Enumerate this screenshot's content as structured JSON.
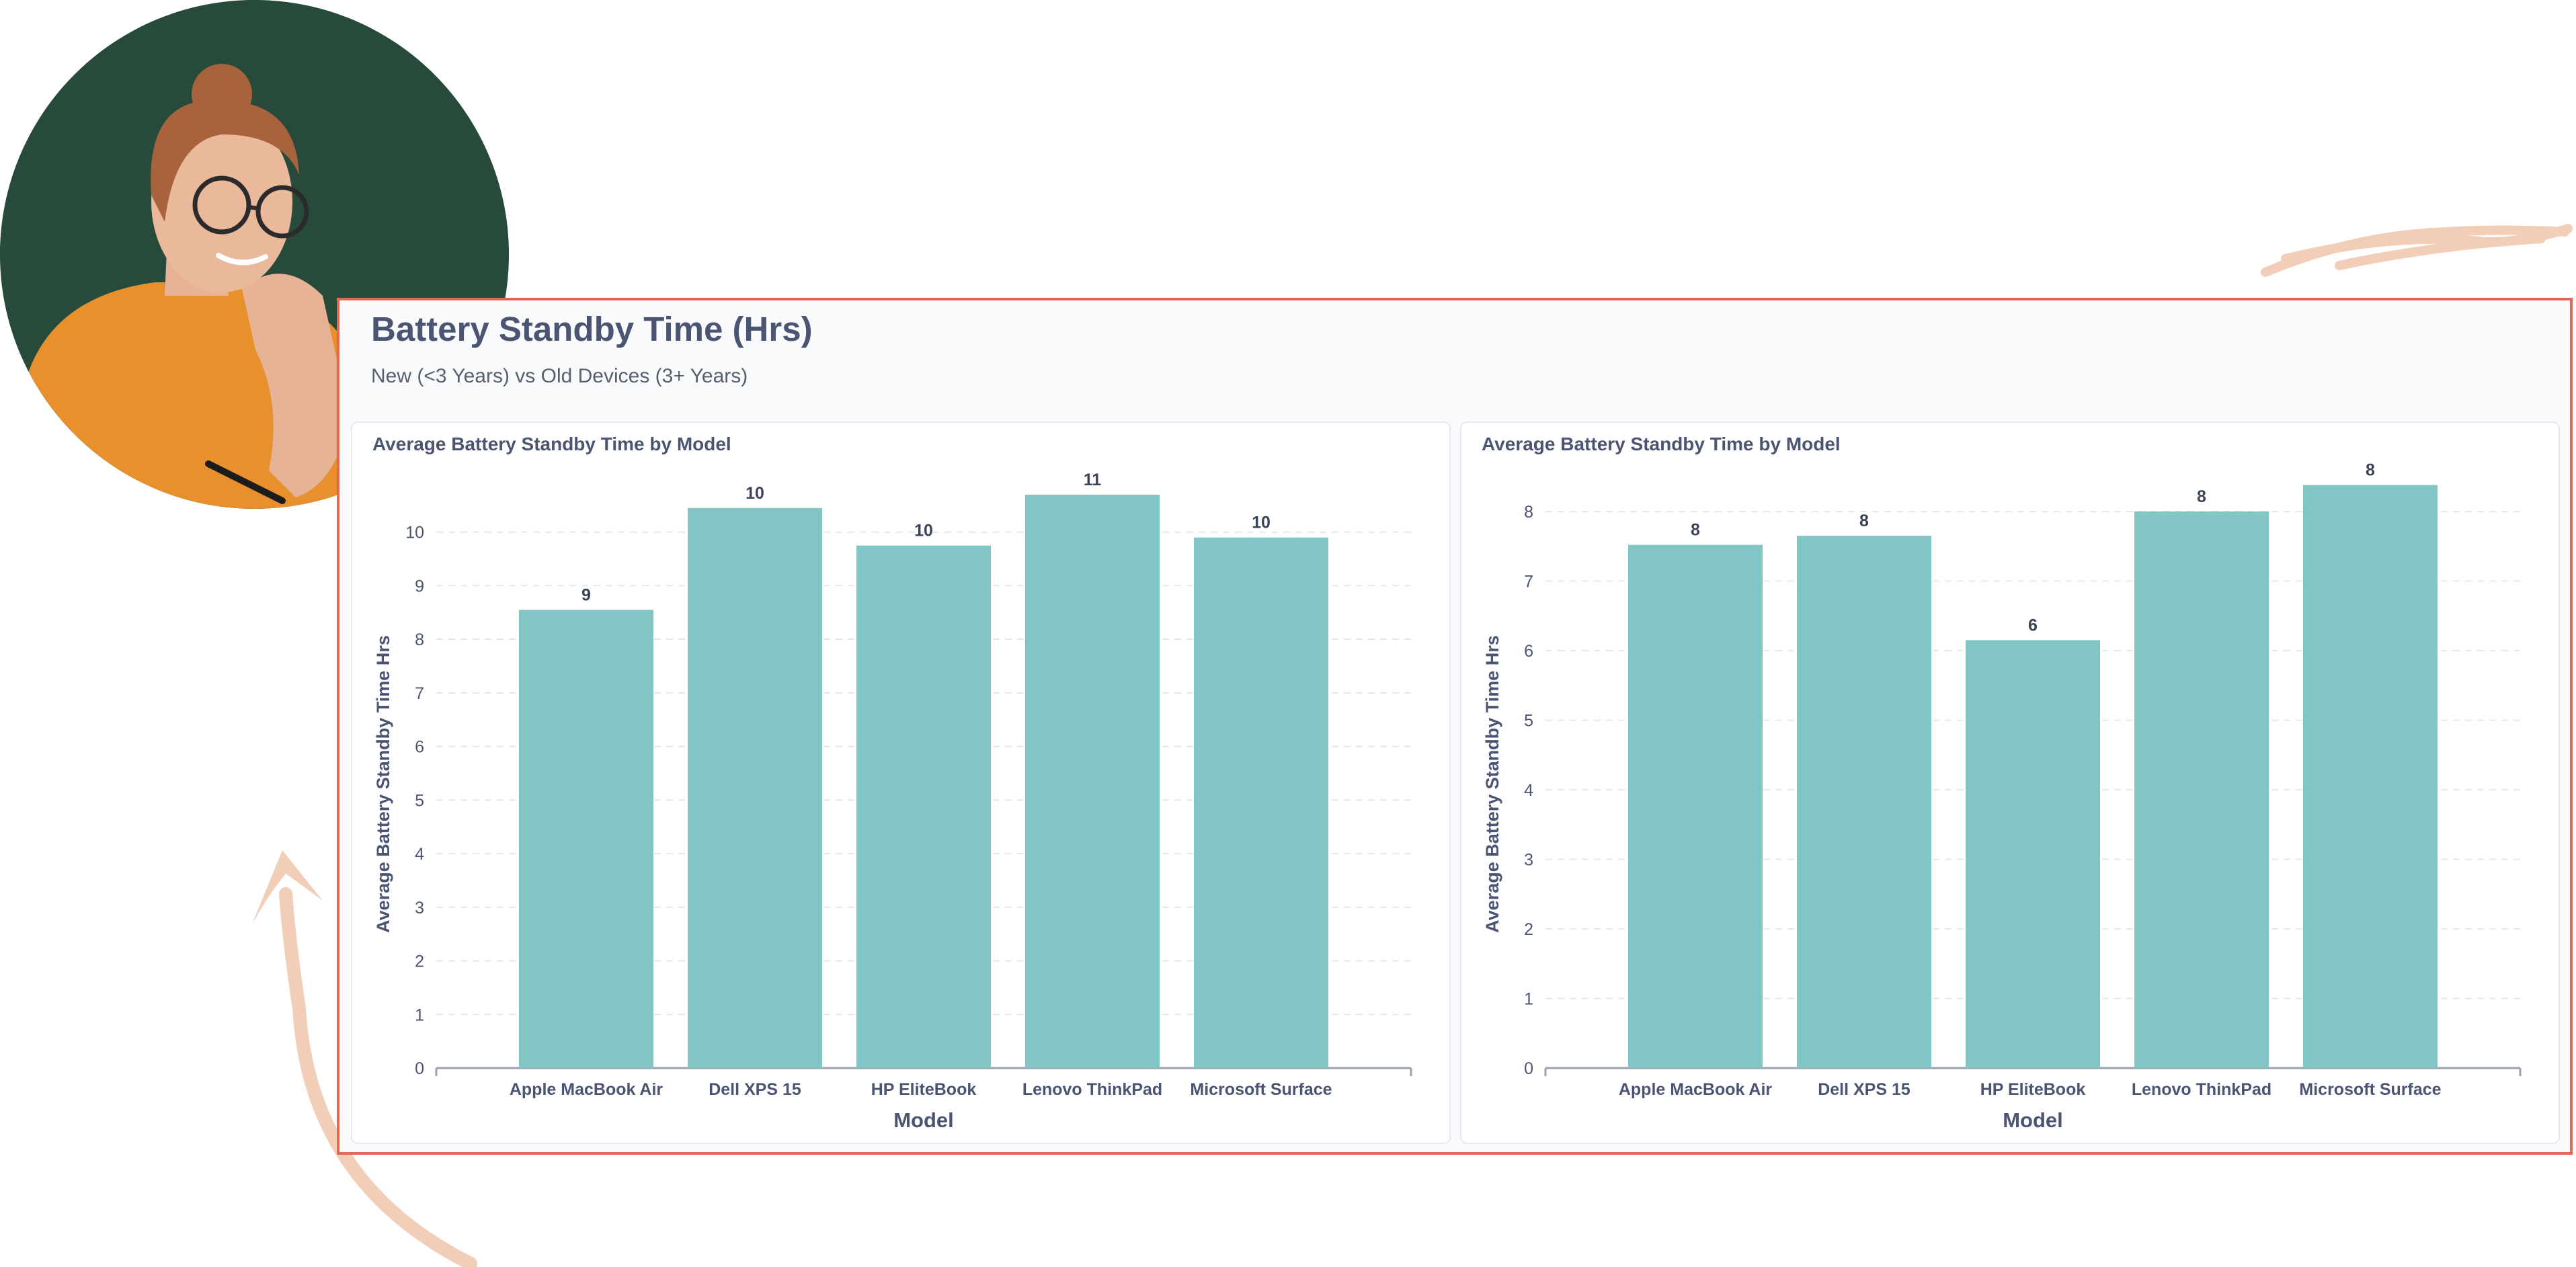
{
  "header": {
    "title": "Battery Standby Time (Hrs)",
    "subtitle": "New (<3 Years) vs Old Devices (3+ Years)"
  },
  "colors": {
    "bar": "#82c5c5",
    "frame_border": "#e06a55",
    "accent_stroke": "#f2cdb8",
    "avatar_bg": "#274a3b"
  },
  "chart_data": [
    {
      "type": "bar",
      "title": "Average Battery Standby Time by Model",
      "xlabel": "Model",
      "ylabel": "Average Battery Standby Time Hrs",
      "categories": [
        "Apple MacBook Air",
        "Dell XPS 15",
        "HP EliteBook",
        "Lenovo ThinkPad",
        "Microsoft Surface"
      ],
      "values": [
        8.55,
        10.45,
        9.75,
        10.7,
        9.9
      ],
      "data_labels": [
        "9",
        "10",
        "10",
        "11",
        "10"
      ],
      "yticks": [
        0,
        1,
        2,
        3,
        4,
        5,
        6,
        7,
        8,
        9,
        10
      ],
      "ylim": [
        0,
        11.1
      ],
      "grid": true
    },
    {
      "type": "bar",
      "title": "Average Battery Standby Time by Model",
      "xlabel": "Model",
      "ylabel": "Average Battery Standby Time Hrs",
      "categories": [
        "Apple MacBook Air",
        "Dell XPS 15",
        "HP EliteBook",
        "Lenovo ThinkPad",
        "Microsoft Surface"
      ],
      "values": [
        7.52,
        7.65,
        6.15,
        8.0,
        8.38
      ],
      "data_labels": [
        "8",
        "8",
        "6",
        "8",
        "8"
      ],
      "yticks": [
        0,
        1,
        2,
        3,
        4,
        5,
        6,
        7,
        8
      ],
      "ylim": [
        0,
        8.55
      ],
      "grid": true
    }
  ]
}
